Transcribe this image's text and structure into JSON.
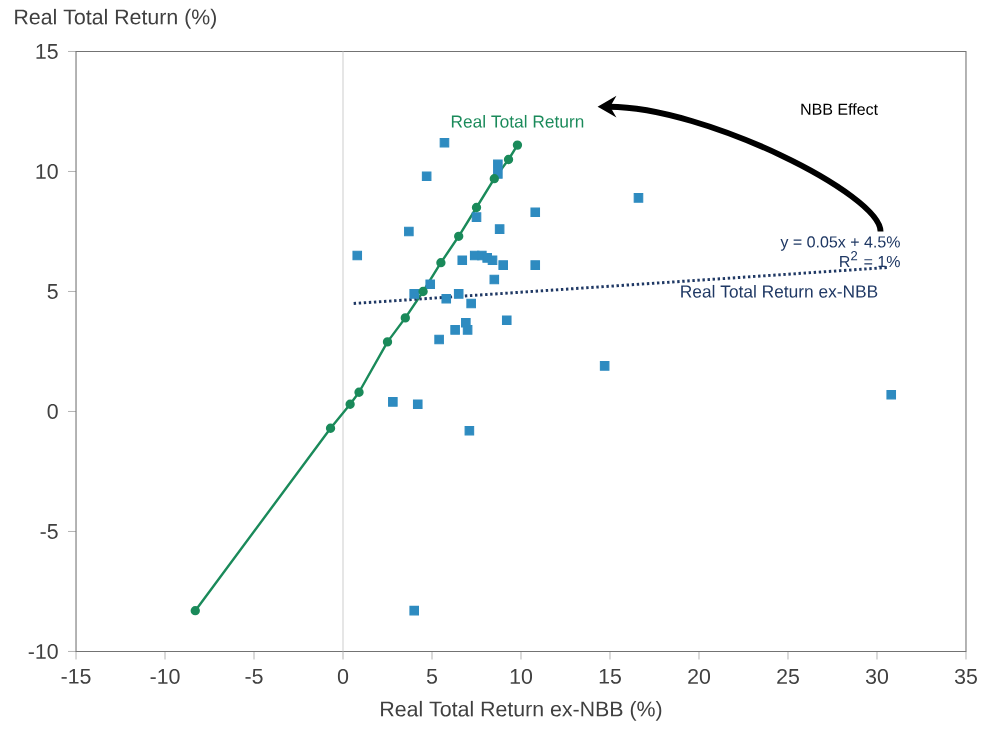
{
  "chart_data": {
    "type": "scatter",
    "xlabel": "Real Total Return ex-NBB (%)",
    "ylabel": "Real Total Return (%)",
    "xlim": [
      -15,
      35
    ],
    "xticks": [
      -15,
      -10,
      -5,
      0,
      5,
      10,
      15,
      20,
      25,
      30,
      35
    ],
    "ylim": [
      -10,
      15
    ],
    "yticks": [
      -10,
      -5,
      0,
      5,
      10,
      15
    ],
    "grid": false,
    "ref_lines": [
      {
        "axis": "x",
        "value": 0,
        "color": "#d0d0d0"
      }
    ],
    "annotations": [
      "NBB Effect",
      "y = 0.05x + 4.5%",
      "R$^{2}$ = 1%"
    ],
    "series": [
      {
        "color": "#2e8bc0",
        "marker": "square",
        "x": [
          0.8,
          3.7,
          4.7,
          5.7,
          7.5,
          8.7,
          8.7,
          4.0,
          4.9,
          6.5,
          5.8,
          7.2,
          7.4,
          7.8,
          8.1,
          8.4,
          9.0,
          8.5,
          6.7,
          10.8,
          16.6,
          8.8,
          10.8,
          2.8,
          4.2,
          7.1,
          4.0,
          30.8,
          6.9,
          6.3,
          7.0,
          9.2,
          5.4,
          14.7
        ],
        "values": [
          6.5,
          7.5,
          9.8,
          11.2,
          8.1,
          10.3,
          9.9,
          4.9,
          5.3,
          4.9,
          4.7,
          4.5,
          6.5,
          6.5,
          6.4,
          6.3,
          6.1,
          5.5,
          6.3,
          8.3,
          8.9,
          7.6,
          6.1,
          0.4,
          0.3,
          -0.8,
          -8.3,
          0.7,
          3.7,
          3.4,
          3.4,
          3.8,
          3.0,
          1.9
        ]
      },
      {
        "type": "line",
        "name": "Real Total Return",
        "color": "#1a8a5a",
        "marker": "circle",
        "line_style": "solid",
        "x": [
          -8.3,
          -0.7,
          0.4,
          0.9,
          2.5,
          3.5,
          4.5,
          5.5,
          6.5,
          7.5,
          8.5,
          9.3,
          9.8
        ],
        "values": [
          -8.3,
          -0.7,
          0.3,
          0.8,
          2.9,
          3.9,
          5.0,
          6.2,
          7.3,
          8.5,
          9.7,
          10.5,
          11.1
        ]
      },
      {
        "type": "line",
        "name": "Real Total Return ex-NBB",
        "color": "#1f3864",
        "marker": "none",
        "line_style": "dotted",
        "x": [
          0.6,
          30.6
        ],
        "values": [
          4.5,
          6.0
        ]
      }
    ]
  }
}
